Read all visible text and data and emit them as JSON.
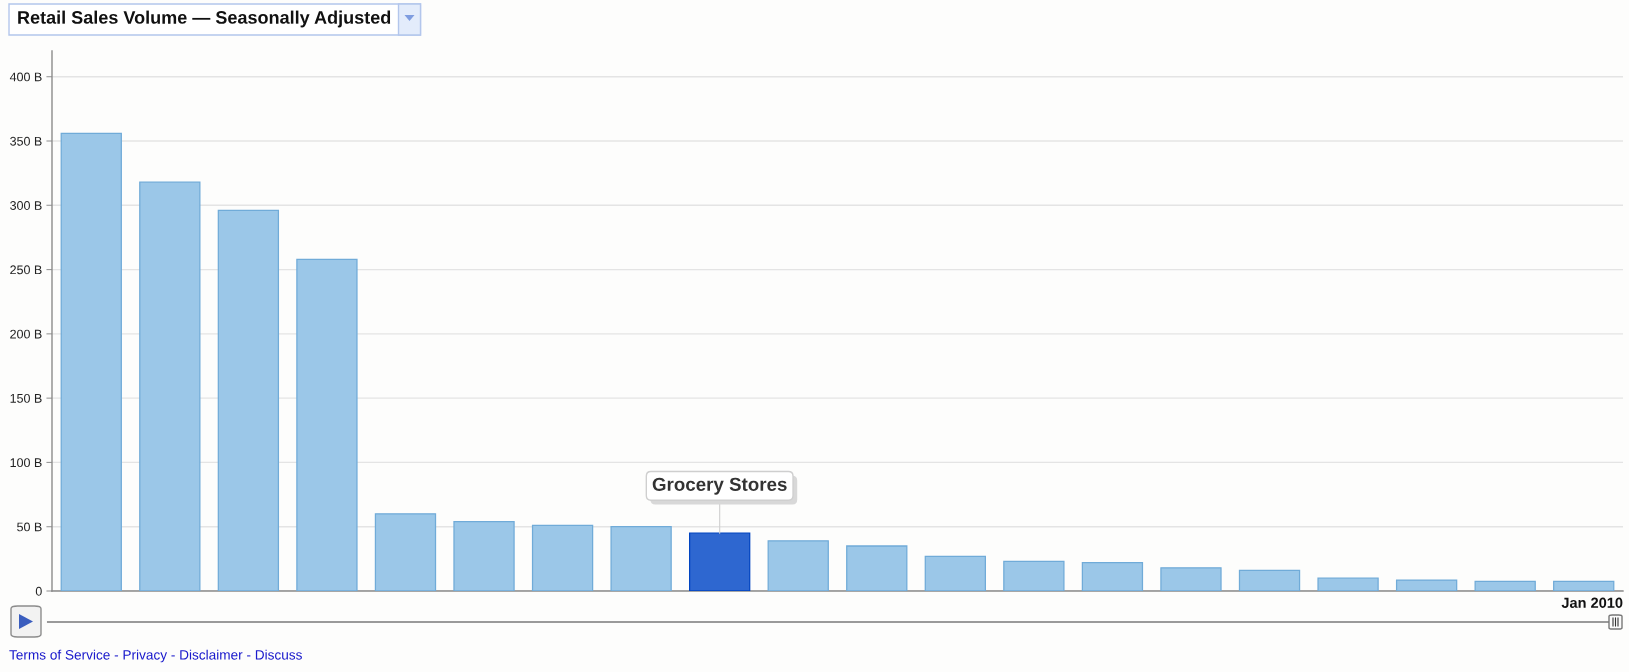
{
  "chart_data": {
    "type": "bar",
    "title": "Retail Sales Volume — Seasonally Adjusted",
    "categories": [
      null,
      null,
      null,
      null,
      null,
      null,
      null,
      null,
      "Grocery Stores",
      null,
      null,
      null,
      null,
      null,
      null,
      null,
      null,
      null,
      null,
      null
    ],
    "values": [
      356,
      318,
      296,
      258,
      60,
      54,
      51,
      50,
      45,
      39,
      35,
      27,
      23,
      22,
      18,
      16,
      10,
      8.5,
      7.5,
      7.5
    ],
    "colors": [
      "#9bc7e8",
      "#9bc7e8",
      "#9bc7e8",
      "#9bc7e8",
      "#9bc7e8",
      "#9bc7e8",
      "#9bc7e8",
      "#9bc7e8",
      "#2e67d0",
      "#9bc7e8",
      "#9bc7e8",
      "#9bc7e8",
      "#9bc7e8",
      "#9bc7e8",
      "#9bc7e8",
      "#9bc7e8",
      "#9bc7e8",
      "#9bc7e8",
      "#9bc7e8",
      "#9bc7e8"
    ],
    "ylim": [
      0,
      420
    ],
    "yticks": [
      0,
      {
        "value": 50,
        "label": "50 B"
      },
      {
        "value": 100,
        "label": "100 B"
      },
      {
        "value": 150,
        "label": "150 B"
      },
      {
        "value": 200,
        "label": "200 B"
      },
      {
        "value": 250,
        "label": "250 B"
      },
      {
        "value": 300,
        "label": "300 B"
      },
      {
        "value": 350,
        "label": "350 B"
      },
      {
        "value": 400,
        "label": "400 B"
      }
    ],
    "grid": "y",
    "annotations": [
      "Jan 2010",
      "Terms of Service - Privacy - Disclaimer - Discuss"
    ]
  }
}
